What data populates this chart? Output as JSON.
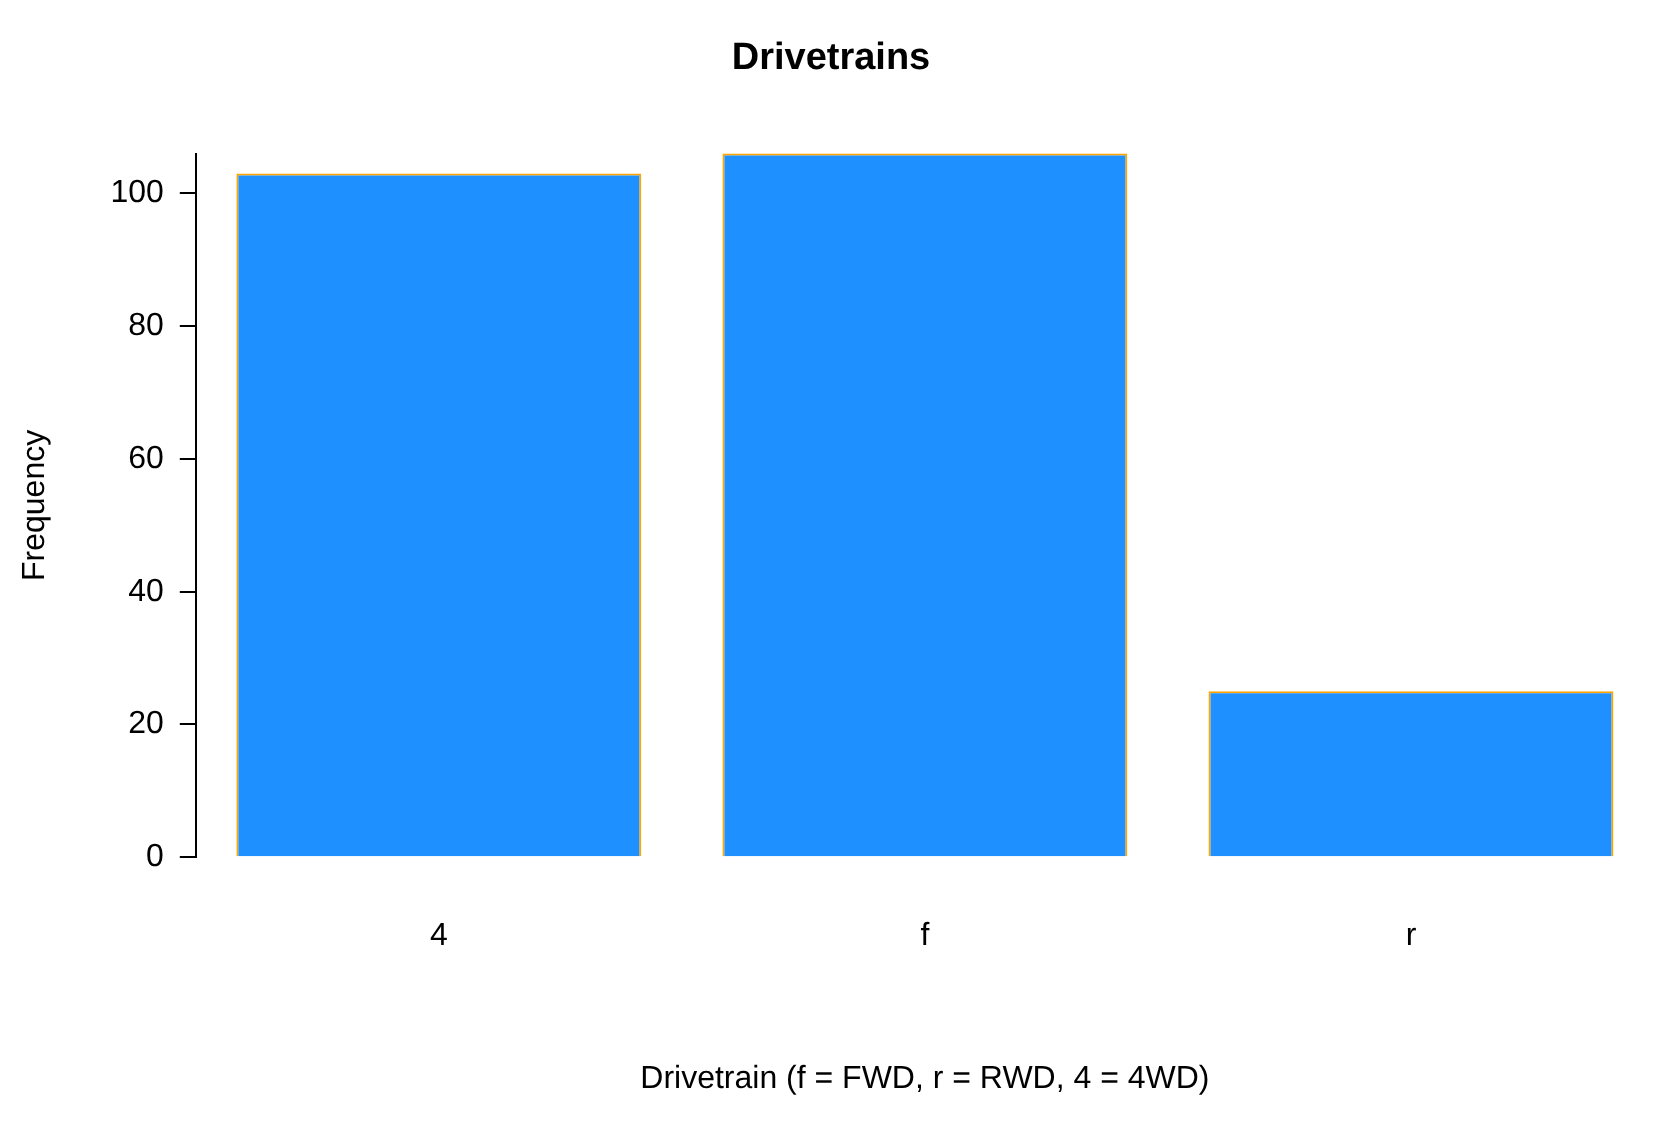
{
  "chart_data": {
    "type": "bar",
    "title": "Drivetrains",
    "xlabel": "Drivetrain (f = FWD, r = RWD, 4 = 4WD)",
    "ylabel": "Frequency",
    "categories": [
      "4",
      "f",
      "r"
    ],
    "values": [
      103,
      106,
      25
    ],
    "color": "#1e90ff",
    "ylim": [
      0,
      106
    ],
    "yticks": [
      0,
      20,
      40,
      60,
      80,
      100
    ],
    "grid": false,
    "legend": false
  }
}
